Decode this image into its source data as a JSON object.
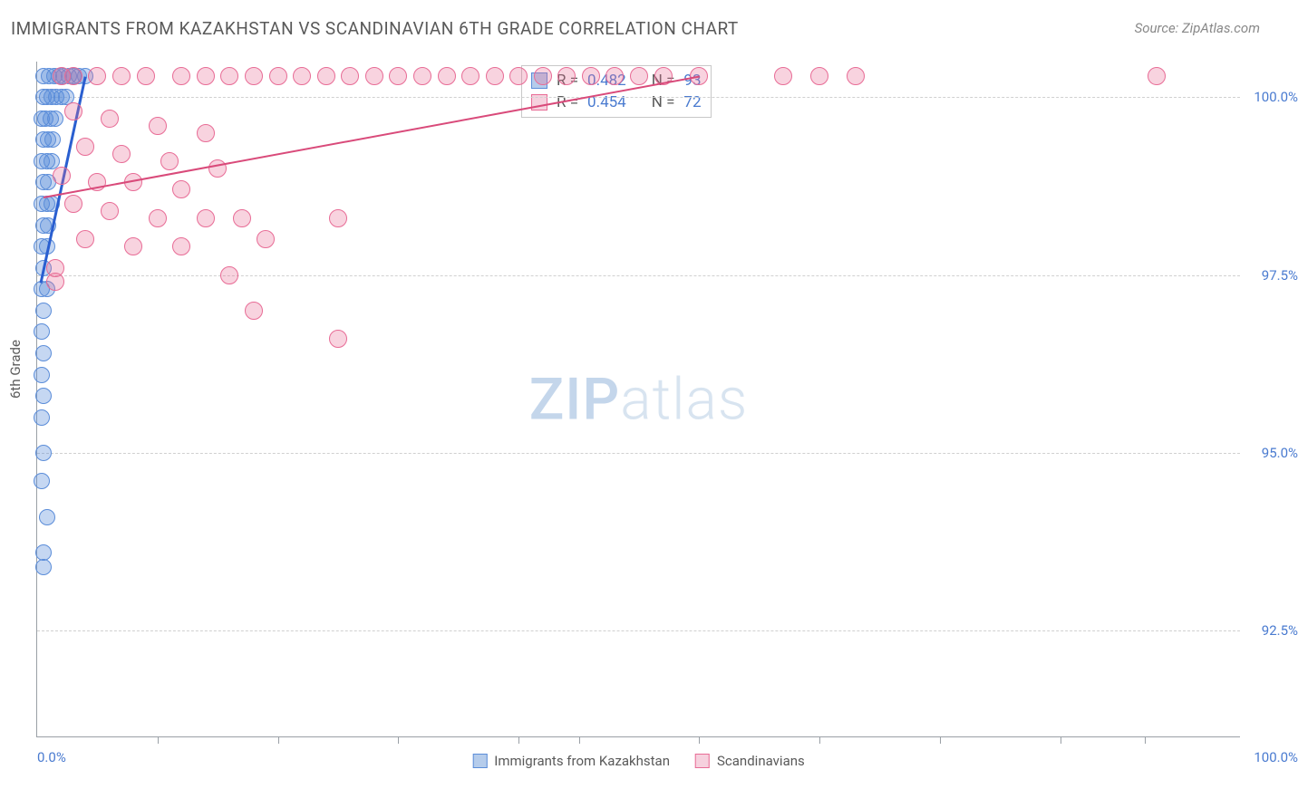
{
  "title": "IMMIGRANTS FROM KAZAKHSTAN VS SCANDINAVIAN 6TH GRADE CORRELATION CHART",
  "source": "Source: ZipAtlas.com",
  "y_axis_label": "6th Grade",
  "watermark_zip": "ZIP",
  "watermark_atlas": "atlas",
  "chart": {
    "type": "scatter",
    "background_color": "#ffffff",
    "grid_color": "#d0d0d0",
    "axis_color": "#9aa0a6",
    "x_axis": {
      "min": 0.0,
      "max": 100.0,
      "start_label": "0.0%",
      "end_label": "100.0%",
      "tick_positions_pct": [
        10,
        20,
        30,
        40,
        45,
        55,
        65,
        75,
        85,
        92
      ]
    },
    "y_axis": {
      "min": 91.0,
      "max": 100.5,
      "ticks": [
        {
          "value": 100.0,
          "label": "100.0%"
        },
        {
          "value": 97.5,
          "label": "97.5%"
        },
        {
          "value": 95.0,
          "label": "95.0%"
        },
        {
          "value": 92.5,
          "label": "92.5%"
        }
      ],
      "label_color": "#4a7bd0",
      "label_fontsize": 15
    },
    "series": [
      {
        "id": "kazakhstan",
        "label": "Immigrants from Kazakhstan",
        "fill": "rgba(88,141,217,0.35)",
        "stroke": "#5b8dd9",
        "swatch_fill": "#b5cceb",
        "swatch_stroke": "#5b8dd9",
        "marker_radius": 9,
        "r_label": "R =",
        "r_value": "0.482",
        "n_label": "N =",
        "n_value": "93",
        "trend": {
          "x1": 0.3,
          "y1": 97.4,
          "x2": 4.0,
          "y2": 100.3,
          "color": "#2a5fd0",
          "width": 3
        },
        "points": [
          {
            "x": 0.5,
            "y": 100.3
          },
          {
            "x": 1.0,
            "y": 100.3
          },
          {
            "x": 1.4,
            "y": 100.3
          },
          {
            "x": 1.8,
            "y": 100.3
          },
          {
            "x": 2.2,
            "y": 100.3
          },
          {
            "x": 2.6,
            "y": 100.3
          },
          {
            "x": 3.0,
            "y": 100.3
          },
          {
            "x": 3.5,
            "y": 100.3
          },
          {
            "x": 4.0,
            "y": 100.3
          },
          {
            "x": 0.5,
            "y": 100.0
          },
          {
            "x": 0.8,
            "y": 100.0
          },
          {
            "x": 1.2,
            "y": 100.0
          },
          {
            "x": 1.6,
            "y": 100.0
          },
          {
            "x": 2.0,
            "y": 100.0
          },
          {
            "x": 2.4,
            "y": 100.0
          },
          {
            "x": 0.4,
            "y": 99.7
          },
          {
            "x": 0.7,
            "y": 99.7
          },
          {
            "x": 1.1,
            "y": 99.7
          },
          {
            "x": 1.5,
            "y": 99.7
          },
          {
            "x": 0.5,
            "y": 99.4
          },
          {
            "x": 0.9,
            "y": 99.4
          },
          {
            "x": 1.3,
            "y": 99.4
          },
          {
            "x": 0.4,
            "y": 99.1
          },
          {
            "x": 0.8,
            "y": 99.1
          },
          {
            "x": 1.2,
            "y": 99.1
          },
          {
            "x": 0.5,
            "y": 98.8
          },
          {
            "x": 0.9,
            "y": 98.8
          },
          {
            "x": 0.4,
            "y": 98.5
          },
          {
            "x": 0.8,
            "y": 98.5
          },
          {
            "x": 1.2,
            "y": 98.5
          },
          {
            "x": 0.5,
            "y": 98.2
          },
          {
            "x": 0.9,
            "y": 98.2
          },
          {
            "x": 0.4,
            "y": 97.9
          },
          {
            "x": 0.8,
            "y": 97.9
          },
          {
            "x": 0.5,
            "y": 97.6
          },
          {
            "x": 0.4,
            "y": 97.3
          },
          {
            "x": 0.8,
            "y": 97.3
          },
          {
            "x": 0.5,
            "y": 97.0
          },
          {
            "x": 0.4,
            "y": 96.7
          },
          {
            "x": 0.5,
            "y": 96.4
          },
          {
            "x": 0.4,
            "y": 96.1
          },
          {
            "x": 0.5,
            "y": 95.8
          },
          {
            "x": 0.4,
            "y": 95.5
          },
          {
            "x": 0.5,
            "y": 95.0
          },
          {
            "x": 0.4,
            "y": 94.6
          },
          {
            "x": 0.8,
            "y": 94.1
          },
          {
            "x": 0.5,
            "y": 93.6
          },
          {
            "x": 0.5,
            "y": 93.4
          }
        ]
      },
      {
        "id": "scandinavians",
        "label": "Scandinavians",
        "fill": "rgba(232,108,150,0.30)",
        "stroke": "#e86c96",
        "swatch_fill": "#f6d1de",
        "swatch_stroke": "#e86c96",
        "marker_radius": 10,
        "r_label": "R =",
        "r_value": "0.454",
        "n_label": "N =",
        "n_value": "72",
        "trend": {
          "x1": 0.5,
          "y1": 98.6,
          "x2": 55.0,
          "y2": 100.3,
          "color": "#d94a7a",
          "width": 2
        },
        "points": [
          {
            "x": 2,
            "y": 100.3
          },
          {
            "x": 3,
            "y": 100.3
          },
          {
            "x": 5,
            "y": 100.3
          },
          {
            "x": 7,
            "y": 100.3
          },
          {
            "x": 9,
            "y": 100.3
          },
          {
            "x": 12,
            "y": 100.3
          },
          {
            "x": 14,
            "y": 100.3
          },
          {
            "x": 16,
            "y": 100.3
          },
          {
            "x": 18,
            "y": 100.3
          },
          {
            "x": 20,
            "y": 100.3
          },
          {
            "x": 22,
            "y": 100.3
          },
          {
            "x": 24,
            "y": 100.3
          },
          {
            "x": 26,
            "y": 100.3
          },
          {
            "x": 28,
            "y": 100.3
          },
          {
            "x": 30,
            "y": 100.3
          },
          {
            "x": 32,
            "y": 100.3
          },
          {
            "x": 34,
            "y": 100.3
          },
          {
            "x": 36,
            "y": 100.3
          },
          {
            "x": 38,
            "y": 100.3
          },
          {
            "x": 40,
            "y": 100.3
          },
          {
            "x": 42,
            "y": 100.3
          },
          {
            "x": 44,
            "y": 100.3
          },
          {
            "x": 46,
            "y": 100.3
          },
          {
            "x": 48,
            "y": 100.3
          },
          {
            "x": 50,
            "y": 100.3
          },
          {
            "x": 52,
            "y": 100.3
          },
          {
            "x": 55,
            "y": 100.3
          },
          {
            "x": 62,
            "y": 100.3
          },
          {
            "x": 65,
            "y": 100.3
          },
          {
            "x": 68,
            "y": 100.3
          },
          {
            "x": 93,
            "y": 100.3
          },
          {
            "x": 3,
            "y": 99.8
          },
          {
            "x": 6,
            "y": 99.7
          },
          {
            "x": 10,
            "y": 99.6
          },
          {
            "x": 14,
            "y": 99.5
          },
          {
            "x": 4,
            "y": 99.3
          },
          {
            "x": 7,
            "y": 99.2
          },
          {
            "x": 11,
            "y": 99.1
          },
          {
            "x": 15,
            "y": 99.0
          },
          {
            "x": 2,
            "y": 98.9
          },
          {
            "x": 5,
            "y": 98.8
          },
          {
            "x": 8,
            "y": 98.8
          },
          {
            "x": 12,
            "y": 98.7
          },
          {
            "x": 3,
            "y": 98.5
          },
          {
            "x": 6,
            "y": 98.4
          },
          {
            "x": 10,
            "y": 98.3
          },
          {
            "x": 14,
            "y": 98.3
          },
          {
            "x": 17,
            "y": 98.3
          },
          {
            "x": 25,
            "y": 98.3
          },
          {
            "x": 4,
            "y": 98.0
          },
          {
            "x": 8,
            "y": 97.9
          },
          {
            "x": 12,
            "y": 97.9
          },
          {
            "x": 19,
            "y": 98.0
          },
          {
            "x": 16,
            "y": 97.5
          },
          {
            "x": 18,
            "y": 97.0
          },
          {
            "x": 25,
            "y": 96.6
          },
          {
            "x": 1.5,
            "y": 97.4
          },
          {
            "x": 1.5,
            "y": 97.6
          }
        ]
      }
    ]
  }
}
